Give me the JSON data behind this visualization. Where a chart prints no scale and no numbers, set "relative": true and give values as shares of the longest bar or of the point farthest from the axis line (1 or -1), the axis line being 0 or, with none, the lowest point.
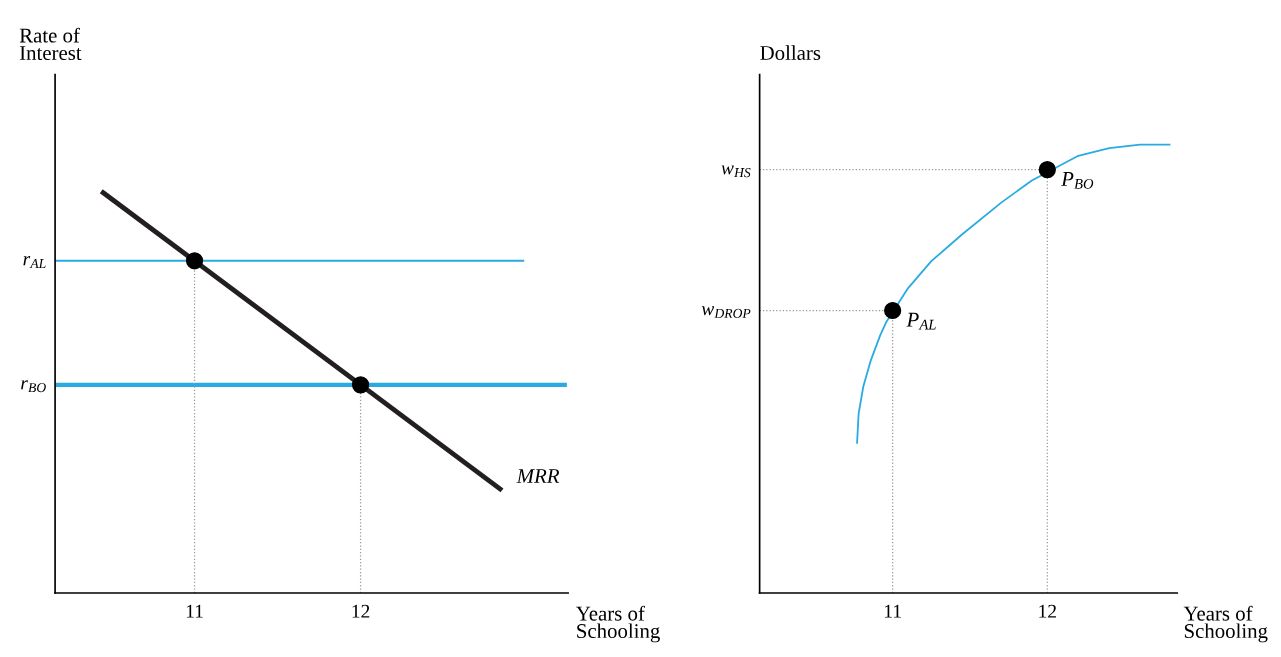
{
  "chart_data": [
    {
      "type": "line",
      "relative": true,
      "ylabel": "Rate of\nInterest",
      "xlabel": "Years of\nSchooling",
      "xlim": [
        10.16,
        13.25
      ],
      "xticks": [
        11,
        12
      ],
      "tick_labels": "x",
      "grid": false,
      "legend": false,
      "series": [
        {
          "color": "#29abe2",
          "x": [
            10.16,
            12.98
          ],
          "values": [
            0.83,
            0.83
          ]
        },
        {
          "color": "#29abe2",
          "x": [
            10.16,
            13.23
          ],
          "values": [
            0.52,
            0.52
          ]
        },
        {
          "color": "#231f20",
          "x": [
            10.45,
            12.84
          ],
          "values": [
            1,
            0.26
          ]
        },
        {
          "color": "#999999",
          "line_style": "dotted",
          "x": [
            11,
            11
          ],
          "values": [
            0,
            0.83
          ]
        },
        {
          "color": "#999999",
          "line_style": "dotted",
          "x": [
            12,
            12
          ],
          "values": [
            0,
            0.52
          ]
        },
        {
          "type": "scatter",
          "color": "#000000",
          "marker": "circle",
          "x": [
            11,
            12
          ],
          "values": [
            0.83,
            0.52
          ]
        }
      ],
      "annotations": [
        {
          "text": "r$_{AL}$",
          "x": 10.16,
          "y": 0.83
        },
        {
          "text": "r$_{BO}$",
          "x": 10.16,
          "y": 0.52
        },
        {
          "text": "MRR",
          "x": 12.84,
          "y": 0.26
        }
      ]
    },
    {
      "type": "line",
      "relative": true,
      "ylabel": "Dollars",
      "xlabel": "Years of\nSchooling",
      "xlim": [
        10.14,
        12.84
      ],
      "xticks": [
        11,
        12
      ],
      "tick_labels": "x",
      "grid": false,
      "legend": false,
      "series": [
        {
          "color": "#29abe2",
          "x": [
            10.77,
            10.78,
            10.81,
            10.86,
            10.92,
            10.96,
            11.1,
            11.25,
            11.45,
            11.7,
            11.9,
            12.2,
            12.4,
            12.6,
            12.79
          ],
          "values": [
            0.335,
            0.4,
            0.46,
            0.52,
            0.575,
            0.605,
            0.68,
            0.74,
            0.8,
            0.87,
            0.92,
            0.975,
            0.992,
            1,
            1
          ]
        },
        {
          "color": "#999999",
          "line_style": "dotted",
          "x": [
            10.14,
            11
          ],
          "values": [
            0.63,
            0.63
          ]
        },
        {
          "color": "#999999",
          "line_style": "dotted",
          "x": [
            10.14,
            12
          ],
          "values": [
            0.944,
            0.944
          ]
        },
        {
          "color": "#999999",
          "line_style": "dotted",
          "x": [
            11,
            11
          ],
          "values": [
            0,
            0.63
          ]
        },
        {
          "color": "#999999",
          "line_style": "dotted",
          "x": [
            12,
            12
          ],
          "values": [
            0,
            0.944
          ]
        },
        {
          "type": "scatter",
          "color": "#000000",
          "marker": "circle",
          "x": [
            11,
            12
          ],
          "values": [
            0.63,
            0.944
          ]
        }
      ],
      "annotations": [
        {
          "text": "w$_{DROP}$",
          "x": 10.14,
          "y": 0.63
        },
        {
          "text": "w$_{HS}$",
          "x": 10.14,
          "y": 0.944
        },
        {
          "text": "P$_{AL}$",
          "x": 11,
          "y": 0.63
        },
        {
          "text": "P$_{BO}$",
          "x": 12,
          "y": 0.944
        }
      ]
    }
  ]
}
